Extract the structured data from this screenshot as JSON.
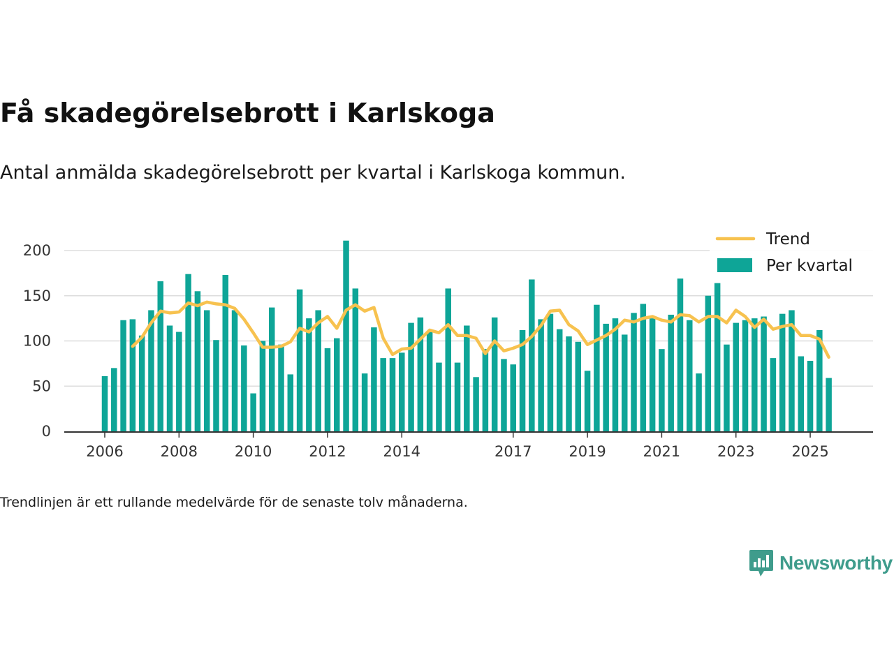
{
  "title": "Få skadegörelsebrott i Karlskoga",
  "subtitle": "Antal anmälda skadegörelsebrott per kvartal i Karlskoga kommun.",
  "note": "Trendlinjen är ett rullande medelvärde för de senaste tolv månaderna.",
  "brand": "Newsworthy",
  "colors": {
    "bars": "#0ea597",
    "trend": "#f7c24f",
    "grid": "#dddddd",
    "axis": "#333333",
    "brand": "#3f9c8c"
  },
  "chart_data": {
    "type": "bar",
    "x": [
      "2006-Q1",
      "2006-Q2",
      "2006-Q3",
      "2006-Q4",
      "2007-Q1",
      "2007-Q2",
      "2007-Q3",
      "2007-Q4",
      "2008-Q1",
      "2008-Q2",
      "2008-Q3",
      "2008-Q4",
      "2009-Q1",
      "2009-Q2",
      "2009-Q3",
      "2009-Q4",
      "2010-Q1",
      "2010-Q2",
      "2010-Q3",
      "2010-Q4",
      "2011-Q1",
      "2011-Q2",
      "2011-Q3",
      "2011-Q4",
      "2012-Q1",
      "2012-Q2",
      "2012-Q3",
      "2012-Q4",
      "2013-Q1",
      "2013-Q2",
      "2013-Q3",
      "2013-Q4",
      "2014-Q1",
      "2014-Q2",
      "2014-Q3",
      "2014-Q4",
      "2015-Q1",
      "2015-Q2",
      "2015-Q3",
      "2015-Q4",
      "2016-Q1",
      "2016-Q2",
      "2016-Q3",
      "2016-Q4",
      "2017-Q1",
      "2017-Q2",
      "2017-Q3",
      "2017-Q4",
      "2018-Q1",
      "2018-Q2",
      "2018-Q3",
      "2018-Q4",
      "2019-Q1",
      "2019-Q2",
      "2019-Q3",
      "2019-Q4",
      "2020-Q1",
      "2020-Q2",
      "2020-Q3",
      "2020-Q4",
      "2021-Q1",
      "2021-Q2",
      "2021-Q3",
      "2021-Q4",
      "2022-Q1",
      "2022-Q2",
      "2022-Q3",
      "2022-Q4",
      "2023-Q1",
      "2023-Q2",
      "2023-Q3",
      "2023-Q4",
      "2024-Q1",
      "2024-Q2",
      "2024-Q3",
      "2024-Q4",
      "2025-Q1",
      "2025-Q2",
      "2025-Q3"
    ],
    "x_ticks": [
      {
        "label": "2006",
        "at": "2006-Q1"
      },
      {
        "label": "2008",
        "at": "2008-Q1"
      },
      {
        "label": "2010",
        "at": "2010-Q1"
      },
      {
        "label": "2012",
        "at": "2012-Q1"
      },
      {
        "label": "2014",
        "at": "2014-Q1"
      },
      {
        "label": "2017",
        "at": "2017-Q1"
      },
      {
        "label": "2019",
        "at": "2019-Q1"
      },
      {
        "label": "2021",
        "at": "2021-Q1"
      },
      {
        "label": "2023",
        "at": "2023-Q1"
      },
      {
        "label": "2025",
        "at": "2025-Q1"
      }
    ],
    "y_ticks": [
      0,
      50,
      100,
      150,
      200
    ],
    "ylim": [
      0,
      215
    ],
    "grid": true,
    "legend_position": "top-right",
    "series": [
      {
        "name": "Per kvartal",
        "type": "bar",
        "values": [
          61,
          70,
          123,
          124,
          106,
          134,
          166,
          117,
          110,
          174,
          155,
          134,
          101,
          173,
          134,
          95,
          42,
          100,
          137,
          96,
          63,
          157,
          125,
          134,
          92,
          103,
          211,
          158,
          64,
          115,
          81,
          81,
          87,
          120,
          126,
          110,
          76,
          158,
          76,
          117,
          60,
          91,
          126,
          80,
          74,
          112,
          168,
          124,
          130,
          113,
          105,
          99,
          67,
          140,
          119,
          125,
          107,
          131,
          141,
          125,
          91,
          129,
          169,
          123,
          64,
          150,
          164,
          96,
          120,
          123,
          125,
          127,
          81,
          130,
          134,
          83,
          78,
          112,
          59
        ]
      },
      {
        "name": "Trend",
        "type": "line",
        "values": [
          null,
          null,
          null,
          94,
          104,
          120,
          133,
          131,
          132,
          142,
          139,
          143,
          141,
          140,
          136,
          124,
          109,
          93,
          93,
          94,
          99,
          114,
          110,
          120,
          127,
          114,
          134,
          140,
          133,
          137,
          103,
          85,
          91,
          92,
          102,
          112,
          109,
          118,
          106,
          106,
          103,
          86,
          100,
          89,
          92,
          96,
          105,
          117,
          133,
          134,
          118,
          111,
          96,
          101,
          106,
          113,
          123,
          121,
          125,
          127,
          123,
          121,
          129,
          128,
          121,
          127,
          127,
          120,
          134,
          127,
          115,
          124,
          113,
          116,
          118,
          106,
          106,
          102,
          82
        ]
      }
    ]
  }
}
